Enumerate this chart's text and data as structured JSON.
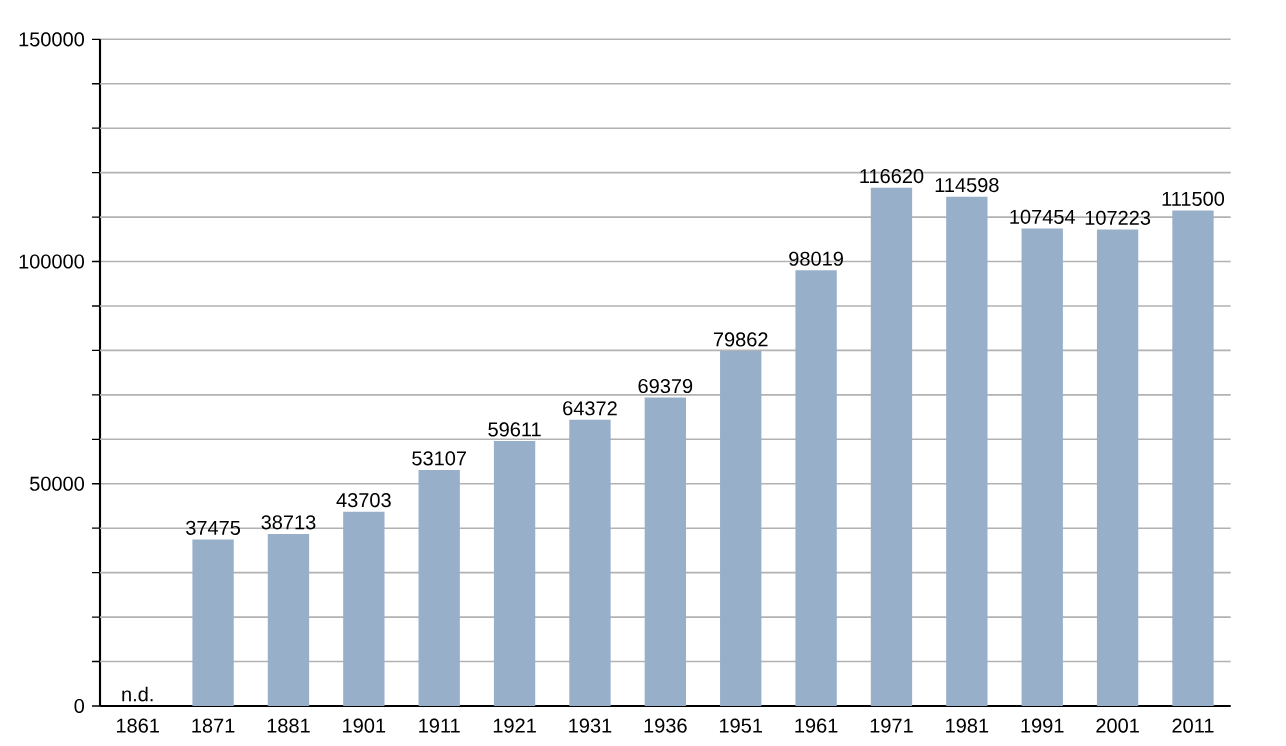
{
  "chart_data": {
    "type": "bar",
    "categories": [
      "1861",
      "1871",
      "1881",
      "1901",
      "1911",
      "1921",
      "1931",
      "1936",
      "1951",
      "1961",
      "1971",
      "1981",
      "1991",
      "2001",
      "2011"
    ],
    "values": [
      null,
      37475,
      38713,
      43703,
      53107,
      59611,
      64372,
      69379,
      79862,
      98019,
      116620,
      114598,
      107454,
      107223,
      111500
    ],
    "value_labels": [
      "n.d.",
      "37475",
      "38713",
      "43703",
      "53107",
      "59611",
      "64372",
      "69379",
      "79862",
      "98019",
      "116620",
      "114598",
      "107454",
      "107223",
      "111500"
    ],
    "color": "#97afc9",
    "ylim": [
      0,
      150000
    ],
    "yticks": [
      0,
      {
        "value": 10000,
        "label": null
      },
      {
        "value": 20000,
        "label": null
      },
      {
        "value": 30000,
        "label": null
      },
      {
        "value": 40000,
        "label": null
      },
      50000,
      {
        "value": 60000,
        "label": null
      },
      {
        "value": 70000,
        "label": null
      },
      {
        "value": 80000,
        "label": null
      },
      {
        "value": 90000,
        "label": null
      },
      100000,
      {
        "value": 110000,
        "label": null
      },
      {
        "value": 120000,
        "label": null
      },
      {
        "value": 130000,
        "label": null
      },
      {
        "value": 140000,
        "label": null
      },
      150000
    ],
    "grid": "y"
  }
}
